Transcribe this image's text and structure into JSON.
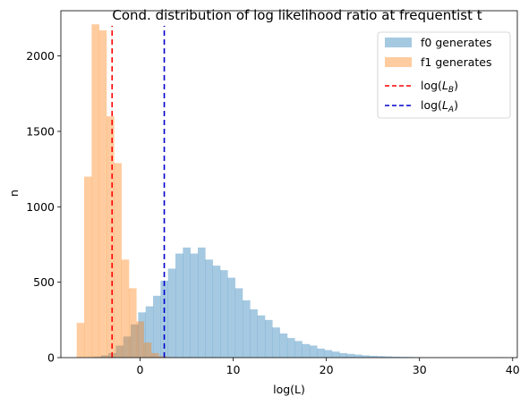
{
  "chart_data": {
    "type": "histogram",
    "title": "Cond. distribution of log likelihood ratio at frequentist  t",
    "xlabel": "log(L)",
    "ylabel": "n",
    "xlim": [
      -8.5,
      40.5
    ],
    "ylim": [
      0,
      2300
    ],
    "xticks": [
      0,
      10,
      20,
      30,
      40
    ],
    "yticks": [
      0,
      500,
      1000,
      1500,
      2000
    ],
    "grid": false,
    "legend_position": "top-right",
    "series": [
      {
        "name": "f0 generates",
        "color": "#1f77b4",
        "alpha": 0.4,
        "bin_start": -5.0,
        "bin_width": 0.8,
        "counts": [
          5,
          15,
          30,
          80,
          140,
          220,
          300,
          340,
          410,
          510,
          590,
          690,
          730,
          690,
          730,
          650,
          610,
          580,
          530,
          460,
          380,
          320,
          280,
          250,
          200,
          160,
          130,
          110,
          90,
          80,
          60,
          50,
          40,
          30,
          25,
          20,
          15,
          12,
          10,
          8,
          6,
          5,
          4,
          3,
          2,
          2,
          1,
          1,
          1,
          1,
          1,
          1,
          1,
          1,
          2
        ]
      },
      {
        "name": "f1 generates",
        "color": "#ff7f0e",
        "alpha": 0.4,
        "bin_start": -6.8,
        "bin_width": 0.8,
        "counts": [
          230,
          1200,
          2210,
          2170,
          1600,
          1290,
          650,
          460,
          240,
          100,
          30,
          10,
          3
        ]
      }
    ],
    "lines": [
      {
        "name": "log($L_B$)",
        "label_main": "log(",
        "label_var": "L",
        "label_sub": "B",
        "label_close": ")",
        "x": -3.0,
        "y_top": 2200,
        "color": "#ff0000"
      },
      {
        "name": "log($L_A$)",
        "label_main": "log(",
        "label_var": "L",
        "label_sub": "A",
        "label_close": ")",
        "x": 2.6,
        "y_top": 2200,
        "color": "#0000cc"
      }
    ]
  }
}
